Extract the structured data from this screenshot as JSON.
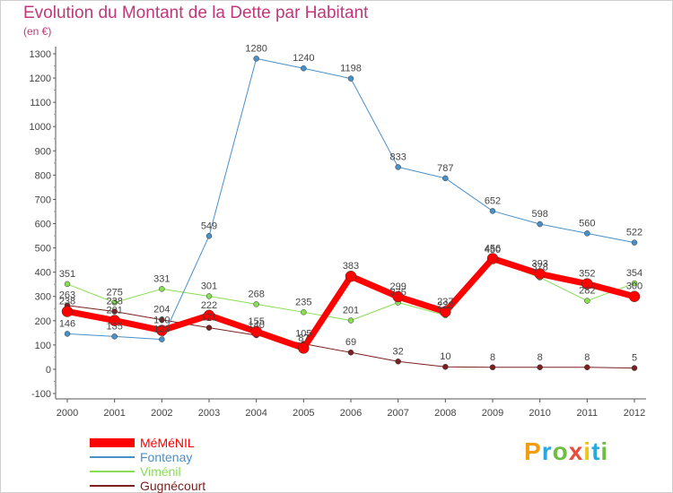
{
  "title": "Evolution du Montant de la Dette par Habitant",
  "unit_label": "(en €)",
  "logo": {
    "letters": [
      "P",
      "r",
      "o",
      "x",
      "i",
      "t",
      "i"
    ],
    "colors": [
      "#f39c12",
      "#27a8e0",
      "#6cbf43",
      "#e74c3c",
      "#f1c40f",
      "#27a8e0",
      "#6cbf43"
    ]
  },
  "chart_data": {
    "type": "line",
    "title": "Evolution du Montant de la Dette par Habitant",
    "ylabel": "(en €)",
    "x": [
      "2000",
      "2001",
      "2002",
      "2003",
      "2004",
      "2005",
      "2006",
      "2007",
      "2008",
      "2009",
      "2010",
      "2011",
      "2012"
    ],
    "ylim": [
      -100,
      1300
    ],
    "yticks": [
      "-100",
      "0",
      "100",
      "200",
      "300",
      "400",
      "500",
      "600",
      "700",
      "800",
      "900",
      "1000",
      "1100",
      "1200",
      "1300"
    ],
    "grid": false,
    "legend_position": "bottom-left",
    "series": [
      {
        "name": "Gugnécourt",
        "color": "#7b2020",
        "width": 1,
        "r": 3,
        "values": [
          263,
          238,
          204,
          171,
          140,
          105,
          69,
          32,
          10,
          8,
          8,
          8,
          5
        ],
        "labels": [
          "263",
          "238",
          "204",
          "171",
          "140",
          "105",
          "69",
          "32",
          "10",
          "8",
          "8",
          "8",
          "5"
        ]
      },
      {
        "name": "Viménil",
        "color": "#88dd55",
        "width": 1,
        "r": 3,
        "values": [
          351,
          275,
          331,
          301,
          268,
          235,
          201,
          275,
          222,
          450,
          378,
          282,
          354
        ],
        "labels": [
          "351",
          "275",
          "331",
          "301",
          "268",
          "235",
          "201",
          "275",
          "222",
          "450",
          "378",
          "282",
          "354"
        ]
      },
      {
        "name": "Fontenay",
        "color": "#4a90c8",
        "width": 1,
        "r": 3,
        "values": [
          146,
          135,
          123,
          549,
          1280,
          1240,
          1198,
          833,
          787,
          652,
          598,
          560,
          522
        ],
        "labels": [
          "146",
          "135",
          "123",
          "549",
          "1280",
          "1240",
          "1198",
          "833",
          "787",
          "652",
          "598",
          "560",
          "522"
        ]
      },
      {
        "name": "MéMéNIL",
        "color": "#ff0000",
        "width": 7,
        "r": 6,
        "values": [
          238,
          201,
          160,
          222,
          155,
          87,
          383,
          299,
          237,
          456,
          393,
          352,
          300
        ],
        "labels": [
          "238",
          "201",
          "160",
          "222",
          "155",
          "87",
          "383",
          "299",
          "237",
          "456",
          "393",
          "352",
          "300"
        ]
      }
    ],
    "legend": [
      {
        "name": "MéMéNIL",
        "color": "#ff0000"
      },
      {
        "name": "Fontenay",
        "color": "#4a90c8"
      },
      {
        "name": "Viménil",
        "color": "#88dd55"
      },
      {
        "name": "Gugnécourt",
        "color": "#7b2020"
      }
    ]
  }
}
